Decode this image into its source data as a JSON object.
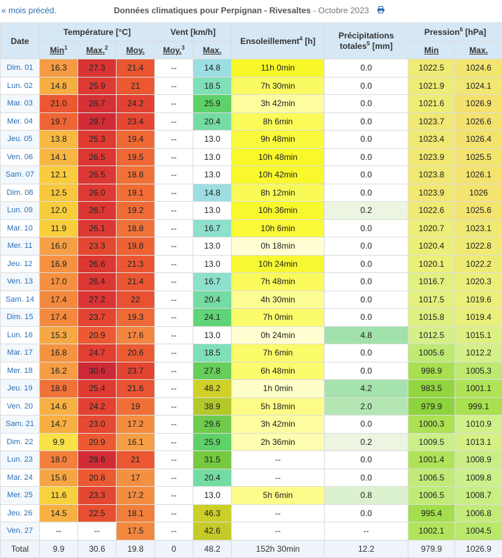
{
  "header": {
    "prev_link": "« mois précéd.",
    "title_main": "Données climatiques pour Perpignan - Rivesaltes",
    "title_sub": " - Octobre 2023"
  },
  "columns": {
    "date": "Date",
    "temperature": "Température [°C]",
    "wind": "Vent [km/h]",
    "sunshine": "Ensoleillement",
    "sunshine_sup": "4",
    "sunshine_unit": " [h]",
    "precip_line1": "Précipitations",
    "precip_line2": "totales",
    "precip_sup": "5",
    "precip_unit": " [mm]",
    "pressure": "Pression",
    "pressure_sup": "6",
    "pressure_unit": " [hPa]",
    "t_min": "Min",
    "t_min_sup": "1",
    "t_max": "Max.",
    "t_max_sup": "2",
    "t_avg": "Moy.",
    "w_avg": "Moy.",
    "w_avg_sup": "3",
    "w_max": "Max.",
    "p_min": "Min",
    "p_max": "Max."
  },
  "rows": [
    {
      "date": "Dim. 01",
      "tmin": "16.3",
      "tmax": "27.3",
      "tavg": "21.4",
      "wavg": "--",
      "wmax": "14.8",
      "sun": "11h 0min",
      "prec": "0.0",
      "pmin": "1022.5",
      "pmax": "1024.6"
    },
    {
      "date": "Lun. 02",
      "tmin": "14.8",
      "tmax": "25.9",
      "tavg": "21",
      "wavg": "--",
      "wmax": "18.5",
      "sun": "7h 30min",
      "prec": "0.0",
      "pmin": "1021.9",
      "pmax": "1024.1"
    },
    {
      "date": "Mar. 03",
      "tmin": "21.0",
      "tmax": "28.7",
      "tavg": "24.2",
      "wavg": "--",
      "wmax": "25.9",
      "sun": "3h 42min",
      "prec": "0.0",
      "pmin": "1021.6",
      "pmax": "1026.9"
    },
    {
      "date": "Mer. 04",
      "tmin": "19.7",
      "tmax": "29.7",
      "tavg": "23.4",
      "wavg": "--",
      "wmax": "20.4",
      "sun": "8h 6min",
      "prec": "0.0",
      "pmin": "1023.7",
      "pmax": "1026.6"
    },
    {
      "date": "Jeu. 05",
      "tmin": "13.8",
      "tmax": "25.3",
      "tavg": "19.4",
      "wavg": "--",
      "wmax": "13.0",
      "sun": "9h 48min",
      "prec": "0.0",
      "pmin": "1023.4",
      "pmax": "1026.4"
    },
    {
      "date": "Ven. 06",
      "tmin": "14.1",
      "tmax": "26.5",
      "tavg": "19.5",
      "wavg": "--",
      "wmax": "13.0",
      "sun": "10h 48min",
      "prec": "0.0",
      "pmin": "1023.9",
      "pmax": "1025.5"
    },
    {
      "date": "Sam. 07",
      "tmin": "12.1",
      "tmax": "26.5",
      "tavg": "18.8",
      "wavg": "--",
      "wmax": "13.0",
      "sun": "10h 42min",
      "prec": "0.0",
      "pmin": "1023.8",
      "pmax": "1026.1"
    },
    {
      "date": "Dim. 08",
      "tmin": "12.5",
      "tmax": "26.0",
      "tavg": "19.1",
      "wavg": "--",
      "wmax": "14.8",
      "sun": "8h 12min",
      "prec": "0.0",
      "pmin": "1023.9",
      "pmax": "1026"
    },
    {
      "date": "Lun. 09",
      "tmin": "12.0",
      "tmax": "26.7",
      "tavg": "19.2",
      "wavg": "--",
      "wmax": "13.0",
      "sun": "10h 36min",
      "prec": "0.2",
      "pmin": "1022.6",
      "pmax": "1025.6"
    },
    {
      "date": "Mar. 10",
      "tmin": "11.9",
      "tmax": "26.1",
      "tavg": "18.8",
      "wavg": "--",
      "wmax": "16.7",
      "sun": "10h 6min",
      "prec": "0.0",
      "pmin": "1020.7",
      "pmax": "1023.1"
    },
    {
      "date": "Mer. 11",
      "tmin": "16.0",
      "tmax": "23.3",
      "tavg": "19.8",
      "wavg": "--",
      "wmax": "13.0",
      "sun": "0h 18min",
      "prec": "0.0",
      "pmin": "1020.4",
      "pmax": "1022.8"
    },
    {
      "date": "Jeu. 12",
      "tmin": "16.9",
      "tmax": "26.6",
      "tavg": "21.3",
      "wavg": "--",
      "wmax": "13.0",
      "sun": "10h 24min",
      "prec": "0.0",
      "pmin": "1020.1",
      "pmax": "1022.2"
    },
    {
      "date": "Ven. 13",
      "tmin": "17.0",
      "tmax": "26.4",
      "tavg": "21.4",
      "wavg": "--",
      "wmax": "16.7",
      "sun": "7h 48min",
      "prec": "0.0",
      "pmin": "1016.7",
      "pmax": "1020.3"
    },
    {
      "date": "Sam. 14",
      "tmin": "17.4",
      "tmax": "27.2",
      "tavg": "22",
      "wavg": "--",
      "wmax": "20.4",
      "sun": "4h 30min",
      "prec": "0.0",
      "pmin": "1017.5",
      "pmax": "1019.6"
    },
    {
      "date": "Dim. 15",
      "tmin": "17.4",
      "tmax": "23.7",
      "tavg": "19.3",
      "wavg": "--",
      "wmax": "24.1",
      "sun": "7h 0min",
      "prec": "0.0",
      "pmin": "1015.8",
      "pmax": "1019.4"
    },
    {
      "date": "Lun. 16",
      "tmin": "15.3",
      "tmax": "20.9",
      "tavg": "17.6",
      "wavg": "--",
      "wmax": "13.0",
      "sun": "0h 24min",
      "prec": "4.8",
      "pmin": "1012.5",
      "pmax": "1015.1"
    },
    {
      "date": "Mar. 17",
      "tmin": "16.8",
      "tmax": "24.7",
      "tavg": "20.6",
      "wavg": "--",
      "wmax": "18.5",
      "sun": "7h 6min",
      "prec": "0.0",
      "pmin": "1005.6",
      "pmax": "1012.2"
    },
    {
      "date": "Mer. 18",
      "tmin": "16.2",
      "tmax": "30.6",
      "tavg": "23.7",
      "wavg": "--",
      "wmax": "27.8",
      "sun": "6h 48min",
      "prec": "0.0",
      "pmin": "998.9",
      "pmax": "1005.3"
    },
    {
      "date": "Jeu. 19",
      "tmin": "18.8",
      "tmax": "25.4",
      "tavg": "21.6",
      "wavg": "--",
      "wmax": "48.2",
      "sun": "1h 0min",
      "prec": "4.2",
      "pmin": "983.5",
      "pmax": "1001.1"
    },
    {
      "date": "Ven. 20",
      "tmin": "14.6",
      "tmax": "24.2",
      "tavg": "19",
      "wavg": "--",
      "wmax": "38.9",
      "sun": "5h 18min",
      "prec": "2.0",
      "pmin": "979.9",
      "pmax": "999.1"
    },
    {
      "date": "Sam. 21",
      "tmin": "14.7",
      "tmax": "23.0",
      "tavg": "17.2",
      "wavg": "--",
      "wmax": "29.6",
      "sun": "3h 42min",
      "prec": "0.0",
      "pmin": "1000.3",
      "pmax": "1010.9"
    },
    {
      "date": "Dim. 22",
      "tmin": "9.9",
      "tmax": "20.9",
      "tavg": "16.1",
      "wavg": "--",
      "wmax": "25.9",
      "sun": "2h 36min",
      "prec": "0.2",
      "pmin": "1009.5",
      "pmax": "1013.1"
    },
    {
      "date": "Lun. 23",
      "tmin": "18.0",
      "tmax": "29.6",
      "tavg": "21",
      "wavg": "--",
      "wmax": "31.5",
      "sun": "--",
      "prec": "0.0",
      "pmin": "1001.4",
      "pmax": "1008.9"
    },
    {
      "date": "Mar. 24",
      "tmin": "15.6",
      "tmax": "20.8",
      "tavg": "17",
      "wavg": "--",
      "wmax": "20.4",
      "sun": "--",
      "prec": "0.0",
      "pmin": "1006.5",
      "pmax": "1009.8"
    },
    {
      "date": "Mer. 25",
      "tmin": "11.6",
      "tmax": "23.3",
      "tavg": "17.2",
      "wavg": "--",
      "wmax": "13.0",
      "sun": "5h 6min",
      "prec": "0.8",
      "pmin": "1006.5",
      "pmax": "1008.7"
    },
    {
      "date": "Jeu. 26",
      "tmin": "14.5",
      "tmax": "22.5",
      "tavg": "18.1",
      "wavg": "--",
      "wmax": "46.3",
      "sun": "--",
      "prec": "0.0",
      "pmin": "995.4",
      "pmax": "1006.8"
    },
    {
      "date": "Ven. 27",
      "tmin": "--",
      "tmax": "--",
      "tavg": "17.5",
      "wavg": "--",
      "wmax": "42.6",
      "sun": "--",
      "prec": "--",
      "pmin": "1002.1",
      "pmax": "1004.5"
    }
  ],
  "total": {
    "date": "Total",
    "tmin": "9.9",
    "tmax": "30.6",
    "tavg": "19.8",
    "wavg": "0",
    "wmax": "48.2",
    "sun": "152h 30min",
    "prec": "12.2",
    "pmin": "979.9",
    "pmax": "1026.9"
  },
  "colors": {
    "link": "#2a6fb5",
    "header_bg": "#d6e8f5"
  }
}
